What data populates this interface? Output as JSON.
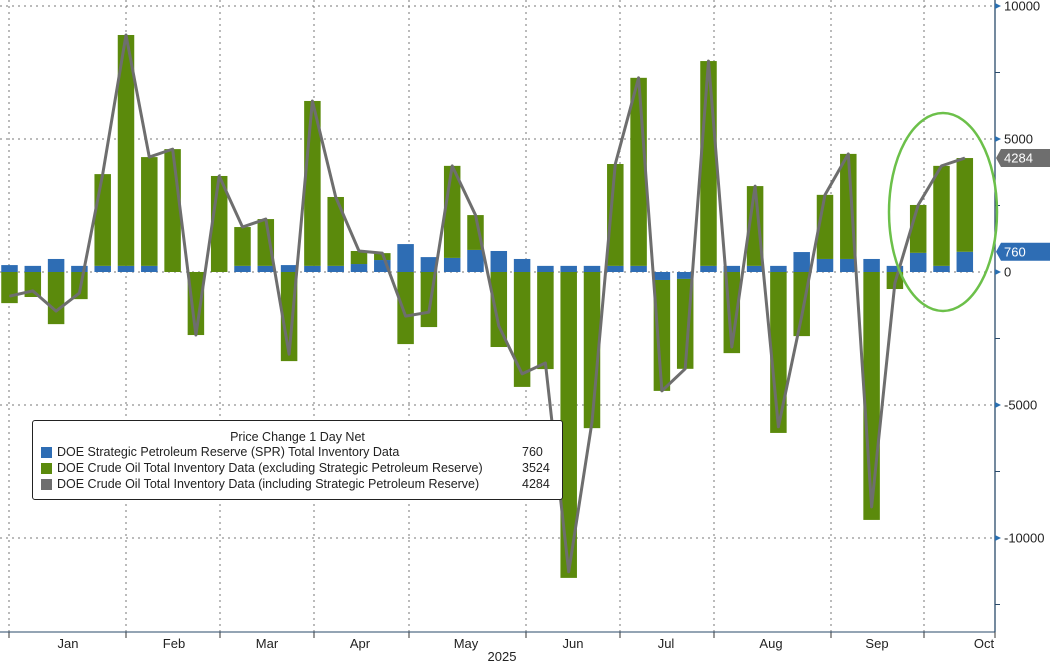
{
  "chart_data": {
    "type": "bar",
    "title": "",
    "legend_title": "Price Change 1 Day Net",
    "x_period_label": "2025",
    "month_labels": [
      "Jan",
      "Feb",
      "Mar",
      "Apr",
      "May",
      "Jun",
      "Jul",
      "Aug",
      "Sep",
      "Oct"
    ],
    "y_ticks": [
      10000,
      5000,
      0,
      -5000,
      -10000
    ],
    "ylim": [
      -12500,
      10250
    ],
    "y_axis_side": "right",
    "grid": true,
    "legend_placement": "bottom-left",
    "stacked": true,
    "series": [
      {
        "name": "DOE Strategic Petroleum Reserve (SPR) Total Inventory Data",
        "type": "bar",
        "color": "#2e6db4",
        "last": "760",
        "values": [
          260,
          230,
          490,
          230,
          230,
          230,
          230,
          0,
          0,
          0,
          230,
          230,
          260,
          230,
          230,
          300,
          450,
          1050,
          560,
          530,
          830,
          790,
          490,
          230,
          230,
          230,
          230,
          230,
          -300,
          -260,
          230,
          230,
          230,
          230,
          750,
          490,
          490,
          490,
          230,
          720,
          230,
          760
        ]
      },
      {
        "name": "DOE Crude Oil Total Inventory Data (excluding Strategic Petroleum Reserve)",
        "type": "bar",
        "color": "#5b8a0c",
        "last": "3524",
        "values": [
          -1170,
          -940,
          -1960,
          -1020,
          3450,
          8680,
          4090,
          4620,
          -2370,
          3610,
          1460,
          1760,
          -3350,
          6200,
          2590,
          490,
          260,
          -2710,
          -2070,
          3460,
          1310,
          -2820,
          -4320,
          -3650,
          -11500,
          -5870,
          3830,
          7070,
          -4170,
          -3380,
          7700,
          -3050,
          3000,
          -6050,
          -2410,
          2410,
          3950,
          -9320,
          -640,
          1800,
          3760,
          3524
        ]
      },
      {
        "name": "DOE Crude Oil Total Inventory Data (including Strategic Petroleum Reserve)",
        "type": "line",
        "color": "#6e6e6e",
        "last": "4284",
        "values": [
          -910,
          -710,
          -1470,
          -790,
          3680,
          8910,
          4320,
          4620,
          -2370,
          3610,
          1690,
          1990,
          -3090,
          6430,
          2820,
          790,
          710,
          -1660,
          -1510,
          3990,
          2140,
          -2030,
          -3830,
          -3420,
          -11270,
          -5640,
          4060,
          7300,
          -4470,
          -3640,
          7930,
          -2820,
          3230,
          -5820,
          -1660,
          2900,
          4440,
          -8830,
          -410,
          2520,
          3990,
          4284
        ]
      }
    ],
    "annotation": "green ellipse highlighting last three weeks"
  }
}
